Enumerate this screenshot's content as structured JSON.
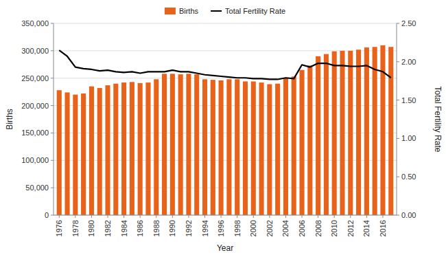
{
  "chart_data": {
    "type": "bar",
    "xlabel": "Year",
    "ylabel": "Births",
    "y2label": "Total Fertility Rate",
    "x": [
      1976,
      1977,
      1978,
      1979,
      1980,
      1981,
      1982,
      1983,
      1984,
      1985,
      1986,
      1987,
      1988,
      1989,
      1990,
      1991,
      1992,
      1993,
      1994,
      1995,
      1996,
      1997,
      1998,
      1999,
      2000,
      2001,
      2002,
      2003,
      2004,
      2005,
      2006,
      2007,
      2008,
      2009,
      2010,
      2011,
      2012,
      2013,
      2014,
      2015,
      2016,
      2017
    ],
    "xlim": [
      1975.3,
      2017.7
    ],
    "xticks": [
      1976,
      1978,
      1980,
      1982,
      1984,
      1986,
      1988,
      1990,
      1992,
      1994,
      1996,
      1998,
      2000,
      2002,
      2004,
      2006,
      2008,
      2010,
      2012,
      2014,
      2016
    ],
    "ylim": [
      0,
      350000
    ],
    "yticks": [
      0,
      {
        "value": 50000,
        "label": "50,000"
      },
      {
        "value": 100000,
        "label": "100,000"
      },
      {
        "value": 150000,
        "label": "150,000"
      },
      {
        "value": 200000,
        "label": "200,000"
      },
      {
        "value": 250000,
        "label": "250,000"
      },
      {
        "value": 300000,
        "label": "300,000"
      },
      {
        "value": 350000,
        "label": "350,000"
      }
    ],
    "y2lim": [
      0.0,
      2.5
    ],
    "y2ticks": [
      {
        "value": 0.0,
        "label": "0.00"
      },
      {
        "value": 0.5,
        "label": "0.50"
      },
      {
        "value": 1.0,
        "label": "1.00"
      },
      {
        "value": 1.5,
        "label": "1.50"
      },
      {
        "value": 2.0,
        "label": "2.00"
      },
      {
        "value": 2.5,
        "label": "2.50"
      }
    ],
    "grid": true,
    "legend": "top",
    "series": [
      {
        "name": "Births",
        "type": "bar",
        "color": "#E8621A",
        "values": [
          228000,
          224000,
          220000,
          222000,
          235000,
          232000,
          237000,
          240000,
          242000,
          243000,
          241000,
          242000,
          248000,
          258000,
          258000,
          257000,
          258000,
          257000,
          248000,
          247000,
          246000,
          248000,
          248000,
          244000,
          244000,
          242000,
          239000,
          240000,
          251000,
          253000,
          265000,
          273000,
          290000,
          294000,
          299000,
          300000,
          300000,
          302000,
          306000,
          307000,
          310000,
          307000
        ]
      },
      {
        "name": "Total Fertility Rate",
        "type": "line",
        "axis": "y2",
        "color": "#000000",
        "values": [
          2.15,
          2.07,
          1.93,
          1.91,
          1.9,
          1.88,
          1.89,
          1.87,
          1.86,
          1.87,
          1.85,
          1.87,
          1.87,
          1.87,
          1.89,
          1.87,
          1.87,
          1.85,
          1.83,
          1.82,
          1.81,
          1.8,
          1.79,
          1.79,
          1.78,
          1.78,
          1.77,
          1.77,
          1.79,
          1.78,
          1.96,
          1.93,
          1.98,
          1.98,
          1.95,
          1.95,
          1.94,
          1.94,
          1.95,
          1.9,
          1.87,
          1.79
        ]
      }
    ]
  }
}
